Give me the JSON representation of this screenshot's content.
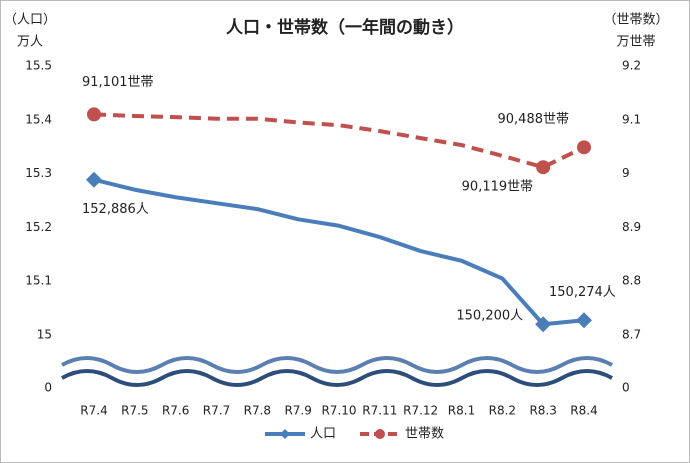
{
  "chart_data": {
    "type": "line",
    "title": "人口・世帯数（一年間の動き）",
    "y_axis_label": [
      "（人口）",
      "万人"
    ],
    "y2_axis_label": [
      "（世帯数）",
      "万世帯"
    ],
    "categories": [
      "R7.4",
      "R7.5",
      "R7.6",
      "R7.7",
      "R7.8",
      "R7.9",
      "R7.10",
      "R7.11",
      "R7.12",
      "R8.1",
      "R8.2",
      "R8.3",
      "R8.4"
    ],
    "ylim": [
      0,
      15.5
    ],
    "yticks": [
      0,
      15.0,
      15.1,
      15.2,
      15.3,
      15.4,
      15.5
    ],
    "y2lim": [
      0,
      9.2
    ],
    "y2ticks": [
      0,
      8.7,
      8.8,
      8.9,
      9.0,
      9.1,
      9.2
    ],
    "axis_break": true,
    "series": [
      {
        "name": "人口",
        "color": "#4a7ebb",
        "marker": "diamond",
        "values": [
          15.2886,
          15.27,
          15.256,
          15.245,
          15.234,
          15.215,
          15.203,
          15.182,
          15.156,
          15.138,
          15.105,
          15.02,
          15.0274
        ],
        "value_labels": [
          "152,886人",
          null,
          null,
          null,
          null,
          null,
          null,
          null,
          null,
          null,
          null,
          "150,200人",
          "150,274人"
        ]
      },
      {
        "name": "世帯数",
        "color": "#c0504d",
        "marker": "circle",
        "dashed": true,
        "axis": "y2",
        "values": [
          9.1101,
          9.107,
          9.105,
          9.102,
          9.102,
          9.095,
          9.09,
          9.079,
          9.066,
          9.053,
          9.033,
          9.0119,
          9.0488
        ],
        "value_labels": [
          "91,101世帯",
          null,
          null,
          null,
          null,
          null,
          null,
          null,
          null,
          null,
          null,
          "90,119世帯",
          "90,488世帯"
        ]
      }
    ]
  }
}
